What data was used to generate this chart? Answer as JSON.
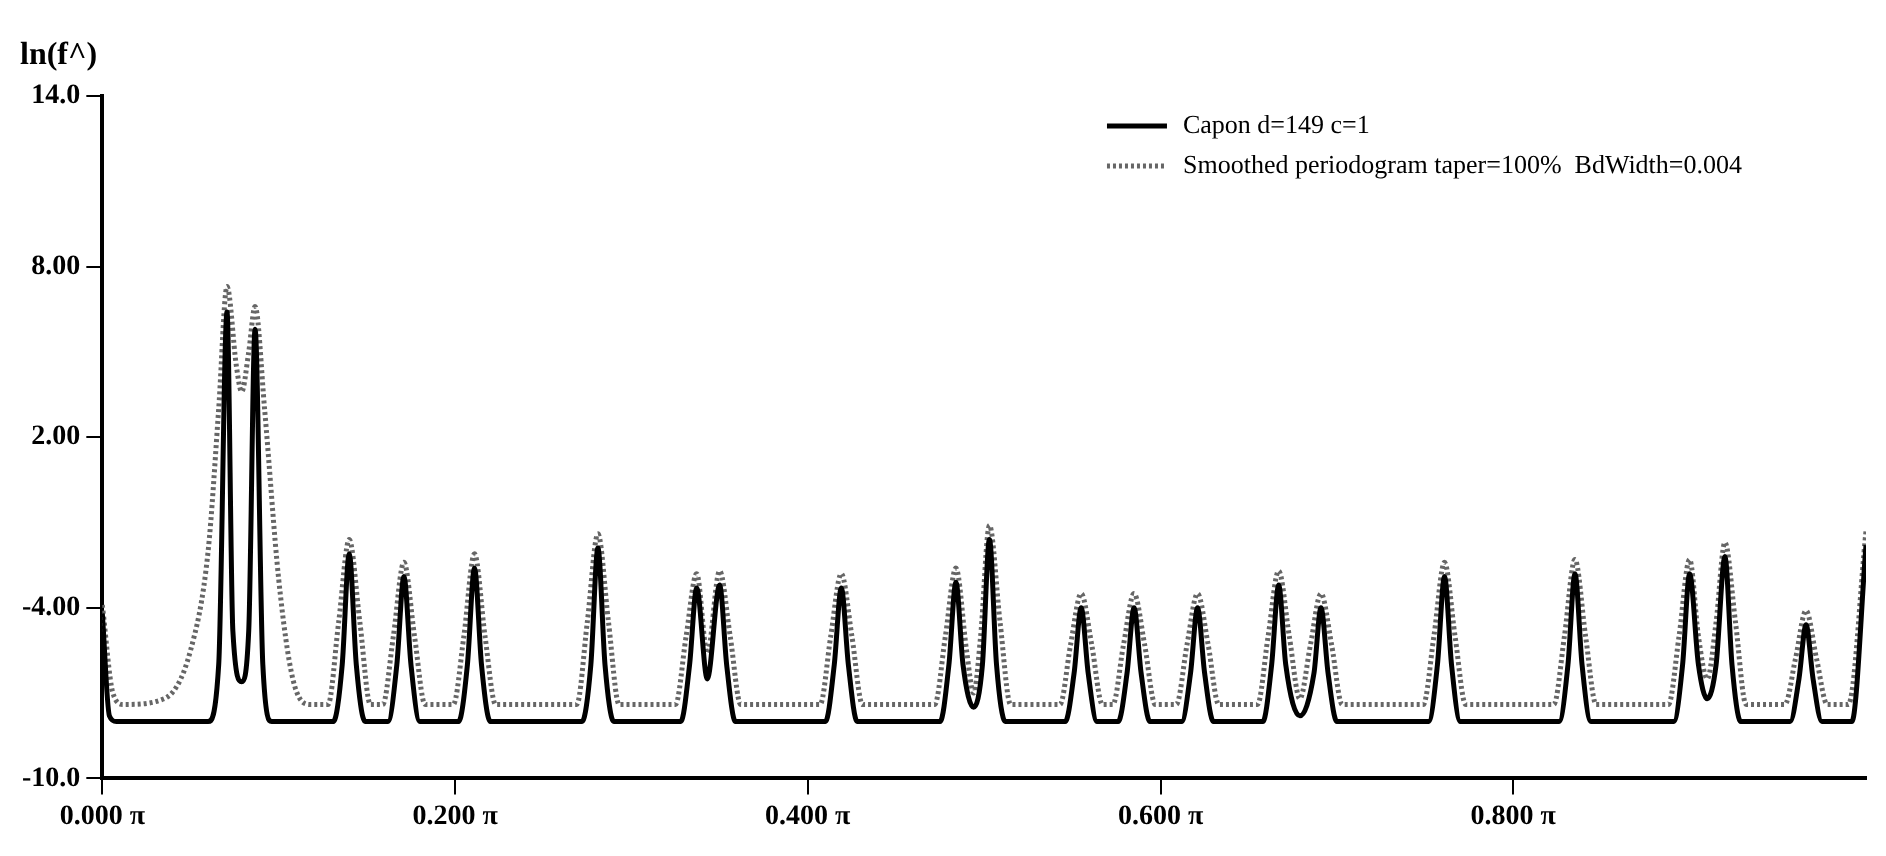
{
  "chart_data": {
    "type": "line",
    "ylabel": "ln(f^)",
    "xlim": [
      0,
      3.1416
    ],
    "ylim": [
      -10,
      14
    ],
    "xticks": [
      {
        "value": 0,
        "label": "0.000 π"
      },
      {
        "value": 0.6283,
        "label": "0.200 π"
      },
      {
        "value": 1.2566,
        "label": "0.400 π"
      },
      {
        "value": 1.885,
        "label": "0.600 π"
      },
      {
        "value": 2.5133,
        "label": "0.800 π"
      }
    ],
    "yticks": [
      {
        "value": -10,
        "label": "-10.0"
      },
      {
        "value": -4,
        "label": "-4.00"
      },
      {
        "value": 2,
        "label": "2.00"
      },
      {
        "value": 8,
        "label": "8.00"
      },
      {
        "value": 14,
        "label": "14.0"
      }
    ],
    "grid": false,
    "legend": "top right",
    "marker": "none",
    "series": [
      {
        "name": "Capon d=149 c=1",
        "color": "#000000",
        "line_style": "solid",
        "x": [
          0,
          0.0126,
          0.0251,
          0.1885,
          0.2073,
          0.2221,
          0.2325,
          0.2482,
          0.2608,
          0.2721,
          0.2859,
          0.3016,
          0.4115,
          0.4273,
          0.4398,
          0.4524,
          0.4681,
          0.5089,
          0.5246,
          0.5372,
          0.5498,
          0.5655,
          0.6346,
          0.6503,
          0.6629,
          0.6754,
          0.6912,
          0.8545,
          0.8702,
          0.8828,
          0.8954,
          0.9111,
          1.0304,
          1.0461,
          1.0587,
          1.0776,
          1.0996,
          1.1121,
          1.1278,
          1.2881,
          1.3038,
          1.3163,
          1.3289,
          1.3446,
          1.4923,
          1.508,
          1.5205,
          1.5331,
          1.552,
          1.5677,
          1.5802,
          1.5928,
          1.6085,
          1.7153,
          1.731,
          1.7436,
          1.7561,
          1.7719,
          1.8096,
          1.8253,
          1.8378,
          1.8504,
          1.8661,
          1.9226,
          1.9384,
          1.9509,
          1.9635,
          1.9792,
          2.0672,
          2.0829,
          2.0954,
          2.108,
          2.1331,
          2.1583,
          2.1708,
          2.1834,
          2.1991,
          2.3625,
          2.3782,
          2.3908,
          2.4033,
          2.419,
          2.595,
          2.6107,
          2.6232,
          2.6358,
          2.6515,
          2.7992,
          2.8149,
          2.8274,
          2.8431,
          2.8588,
          2.8746,
          2.8903,
          2.9029,
          2.9185,
          3.0065,
          3.0222,
          3.0348,
          3.0473,
          3.063,
          3.1164,
          3.1416
        ],
        "values": [
          -4.2,
          -7.8,
          -8.0,
          -8.0,
          -6,
          6.4,
          -4.8,
          -6.6,
          -4.8,
          5.8,
          -6,
          -8.0,
          -8.0,
          -6,
          -2.1,
          -6,
          -8.0,
          -8.0,
          -6,
          -2.9,
          -6,
          -8.0,
          -8.0,
          -6,
          -2.6,
          -6,
          -8.0,
          -8.0,
          -6,
          -1.9,
          -6,
          -8.0,
          -8.0,
          -6,
          -3.3,
          -6.5,
          -3.2,
          -6,
          -8.0,
          -8.0,
          -6,
          -3.3,
          -6,
          -8.0,
          -8.0,
          -6,
          -3.1,
          -6,
          -7.5,
          -6,
          -1.6,
          -6,
          -8.0,
          -8.0,
          -6.3,
          -4.0,
          -6.3,
          -8.0,
          -8.0,
          -6.3,
          -4.0,
          -6.3,
          -8.0,
          -8.0,
          -6.3,
          -4.0,
          -6.3,
          -8.0,
          -8.0,
          -6,
          -3.2,
          -6,
          -7.8,
          -6.3,
          -4.0,
          -6.3,
          -8.0,
          -8.0,
          -6,
          -2.9,
          -6,
          -8.0,
          -8.0,
          -6,
          -2.8,
          -6,
          -8.0,
          -8.0,
          -6,
          -2.8,
          -6,
          -7.2,
          -6,
          -2.2,
          -6,
          -8.0,
          -8.0,
          -6.5,
          -4.6,
          -6.5,
          -8.0,
          -8.0,
          -1.8
        ]
      },
      {
        "name": "Smoothed periodogram taper=100%  BdWidth=0.004",
        "color": "#666666",
        "line_style": "dotted",
        "x": [
          0,
          0.0188,
          0.0377,
          0.11,
          0.1571,
          0.1885,
          0.2073,
          0.2221,
          0.2388,
          0.2482,
          0.2608,
          0.2721,
          0.289,
          0.3142,
          0.3393,
          0.3707,
          0.4021,
          0.421,
          0.4398,
          0.4587,
          0.4775,
          0.4995,
          0.5184,
          0.5372,
          0.5561,
          0.5749,
          0.6252,
          0.644,
          0.6629,
          0.6817,
          0.7006,
          0.8451,
          0.8639,
          0.8828,
          0.9016,
          0.9205,
          1.021,
          1.0399,
          1.0587,
          1.0776,
          1.0996,
          1.1184,
          1.1372,
          1.2786,
          1.2975,
          1.3163,
          1.3352,
          1.354,
          1.4828,
          1.5017,
          1.5205,
          1.5394,
          1.552,
          1.5645,
          1.5802,
          1.5991,
          1.6179,
          1.7059,
          1.7247,
          1.7436,
          1.7624,
          1.7813,
          1.8001,
          1.819,
          1.8378,
          1.8567,
          1.8755,
          1.9132,
          1.9321,
          1.9509,
          1.9698,
          1.9886,
          2.0577,
          2.0766,
          2.0954,
          2.1143,
          2.1331,
          2.152,
          2.1708,
          2.1897,
          2.2085,
          2.3531,
          2.3719,
          2.3908,
          2.4096,
          2.4285,
          2.5855,
          2.6044,
          2.6232,
          2.6421,
          2.6609,
          2.7897,
          2.8086,
          2.8274,
          2.8431,
          2.8588,
          2.8746,
          2.8903,
          2.9091,
          2.928,
          2.9971,
          3.0159,
          3.0348,
          3.0536,
          3.0725,
          3.1102,
          3.1416
        ],
        "values": [
          -3.9,
          -7.0,
          -7.4,
          -7.2,
          -5.5,
          -2,
          3,
          7.3,
          4.5,
          3.6,
          5,
          6.6,
          3,
          -3,
          -6.5,
          -7.4,
          -7.4,
          -4.5,
          -1.6,
          -4.5,
          -7.4,
          -7.4,
          -5,
          -2.4,
          -5,
          -7.4,
          -7.4,
          -5,
          -2.1,
          -5,
          -7.4,
          -7.4,
          -4.5,
          -1.4,
          -4.5,
          -7.4,
          -7.4,
          -5,
          -2.8,
          -5.6,
          -2.7,
          -5,
          -7.4,
          -7.4,
          -5,
          -2.8,
          -5,
          -7.4,
          -7.4,
          -5,
          -2.6,
          -5.5,
          -7.0,
          -5,
          -1.1,
          -4.5,
          -7.4,
          -7.4,
          -5.3,
          -3.5,
          -5.3,
          -7.4,
          -7.4,
          -5.3,
          -3.5,
          -5.3,
          -7.4,
          -7.4,
          -5.3,
          -3.5,
          -5.3,
          -7.4,
          -7.4,
          -5,
          -2.7,
          -5,
          -7.2,
          -5.3,
          -3.5,
          -5.3,
          -7.4,
          -7.4,
          -5,
          -2.4,
          -5,
          -7.4,
          -7.4,
          -5,
          -2.3,
          -5,
          -7.4,
          -7.4,
          -5,
          -2.3,
          -5,
          -6.5,
          -4.5,
          -1.7,
          -4.5,
          -7.4,
          -7.4,
          -5.8,
          -4.1,
          -5.8,
          -7.4,
          -7.4,
          -1.3
        ]
      }
    ]
  }
}
